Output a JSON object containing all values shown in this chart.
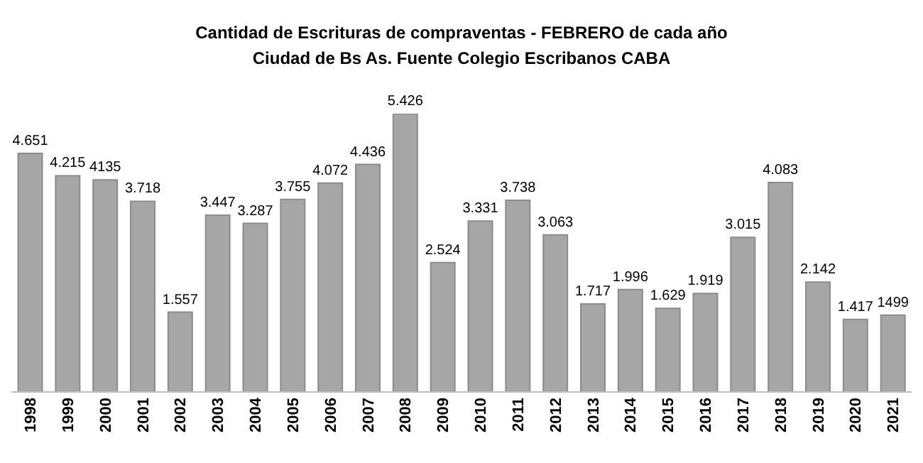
{
  "chart_data": {
    "type": "bar",
    "title": "Cantidad de Escrituras de compraventas - FEBRERO de cada año",
    "subtitle": "Ciudad de Bs As. Fuente Colegio Escribanos CABA",
    "categories": [
      "1998",
      "1999",
      "2000",
      "2001",
      "2002",
      "2003",
      "2004",
      "2005",
      "2006",
      "2007",
      "2008",
      "2009",
      "2010",
      "2011",
      "2012",
      "2013",
      "2014",
      "2015",
      "2016",
      "2017",
      "2018",
      "2019",
      "2020",
      "2021"
    ],
    "values": [
      4651,
      4215,
      4135,
      3718,
      1557,
      3447,
      3287,
      3755,
      4072,
      4436,
      5426,
      2524,
      3331,
      3738,
      3063,
      1717,
      1996,
      1629,
      1919,
      3015,
      4083,
      2142,
      1417,
      1499
    ],
    "value_labels": [
      "4.651",
      "4.215",
      "4135",
      "3.718",
      "1.557",
      "3.447",
      "3.287",
      "3.755",
      "4.072",
      "4.436",
      "5.426",
      "2.524",
      "3.331",
      "3.738",
      "3.063",
      "1.717",
      "1.996",
      "1.629",
      "1.919",
      "3.015",
      "4.083",
      "2.142",
      "1.417",
      "1499"
    ],
    "color": "#a6a6a6",
    "grid": false,
    "legend": false
  }
}
